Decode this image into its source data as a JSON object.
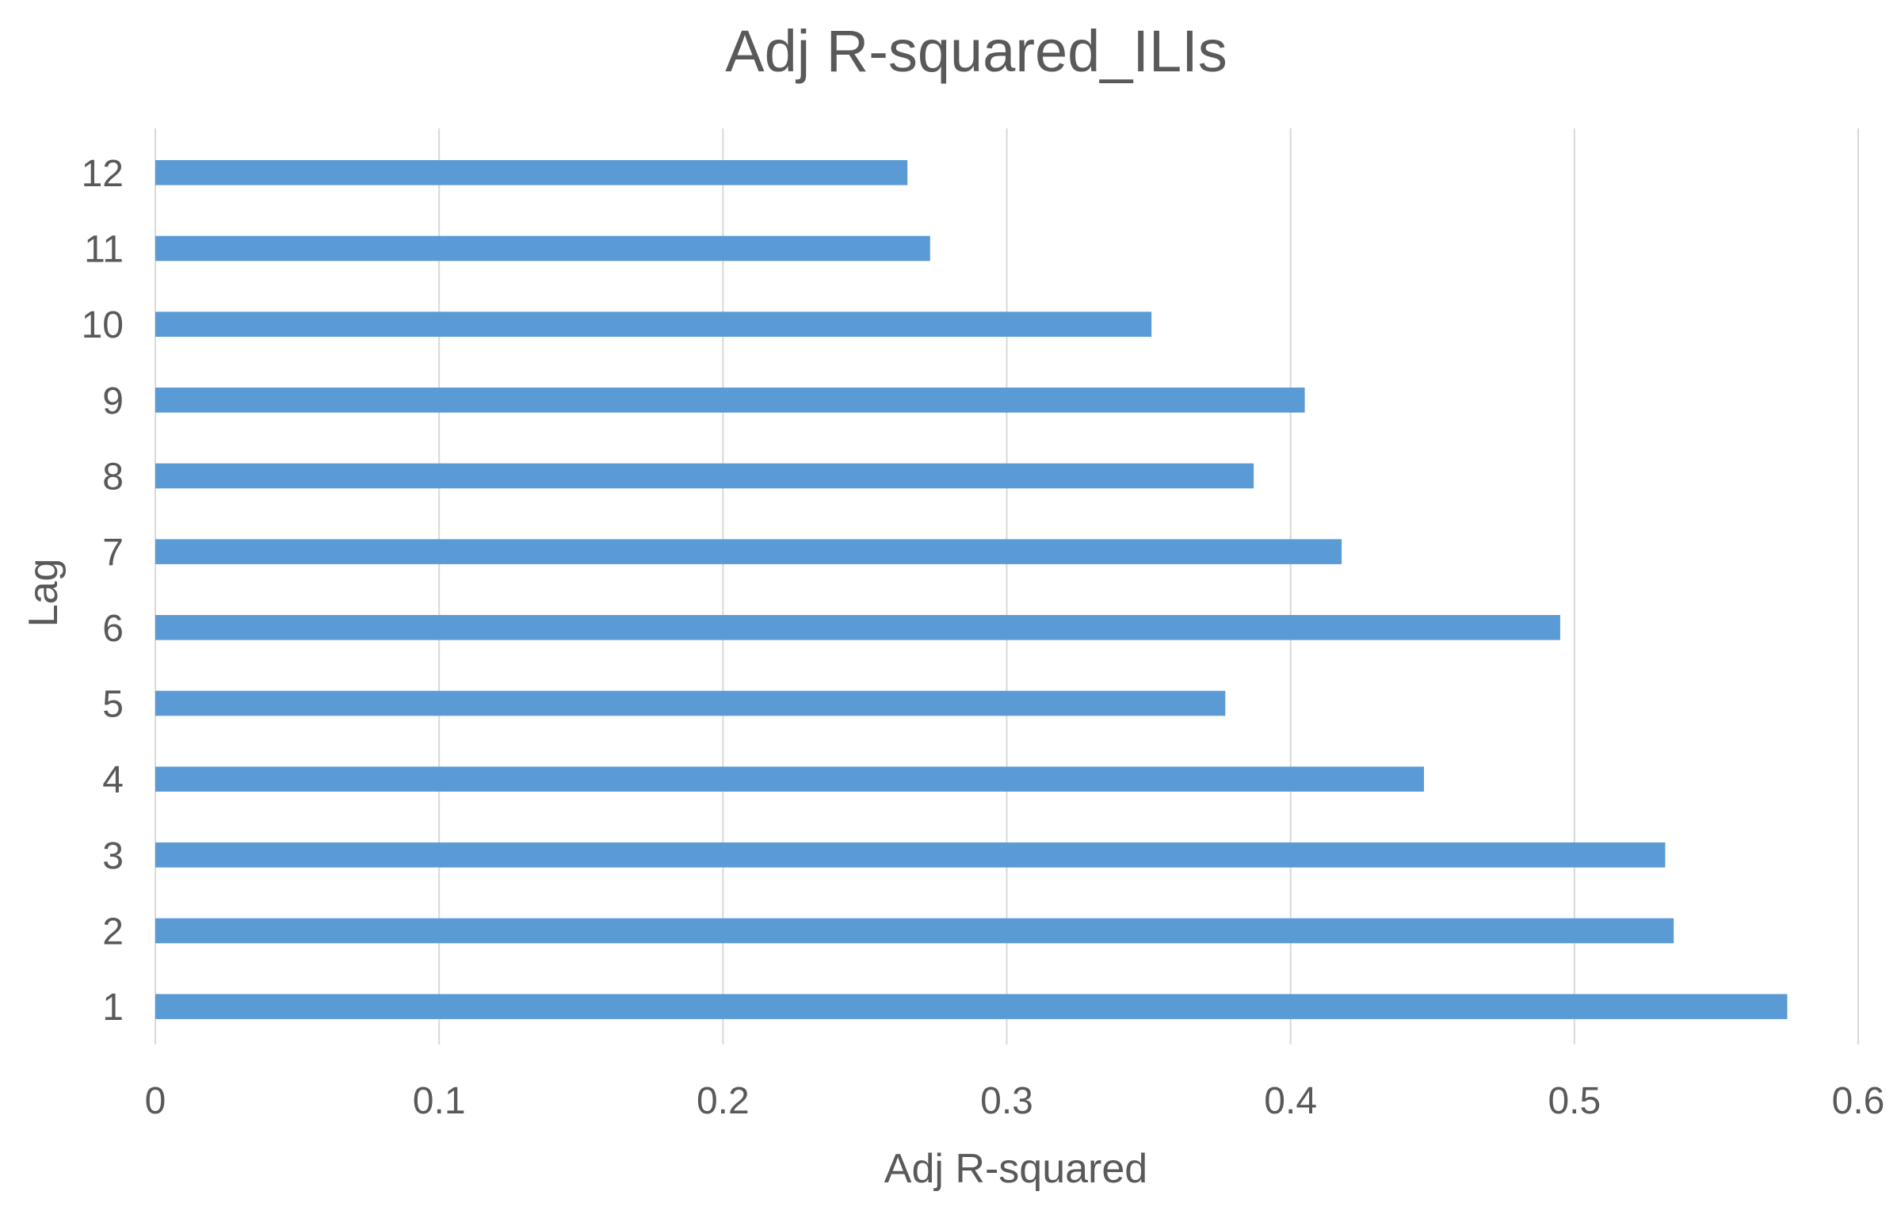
{
  "chart_data": {
    "type": "bar",
    "orientation": "horizontal",
    "title": "Adj R-squared_ILIs",
    "xlabel": "Adj R-squared",
    "ylabel": "Lag",
    "xlim": [
      0,
      0.6
    ],
    "xticks": [
      0,
      0.1,
      0.2,
      0.3,
      0.4,
      0.5,
      0.6
    ],
    "xtick_labels": [
      "0",
      "0.1",
      "0.2",
      "0.3",
      "0.4",
      "0.5",
      "0.6"
    ],
    "categories": [
      "1",
      "2",
      "3",
      "4",
      "5",
      "6",
      "7",
      "8",
      "9",
      "10",
      "11",
      "12"
    ],
    "values": [
      0.575,
      0.535,
      0.532,
      0.447,
      0.377,
      0.495,
      0.418,
      0.387,
      0.405,
      0.351,
      0.273,
      0.265
    ],
    "grid": "vertical",
    "legend": "none",
    "bar_color": "#5b9bd5"
  }
}
